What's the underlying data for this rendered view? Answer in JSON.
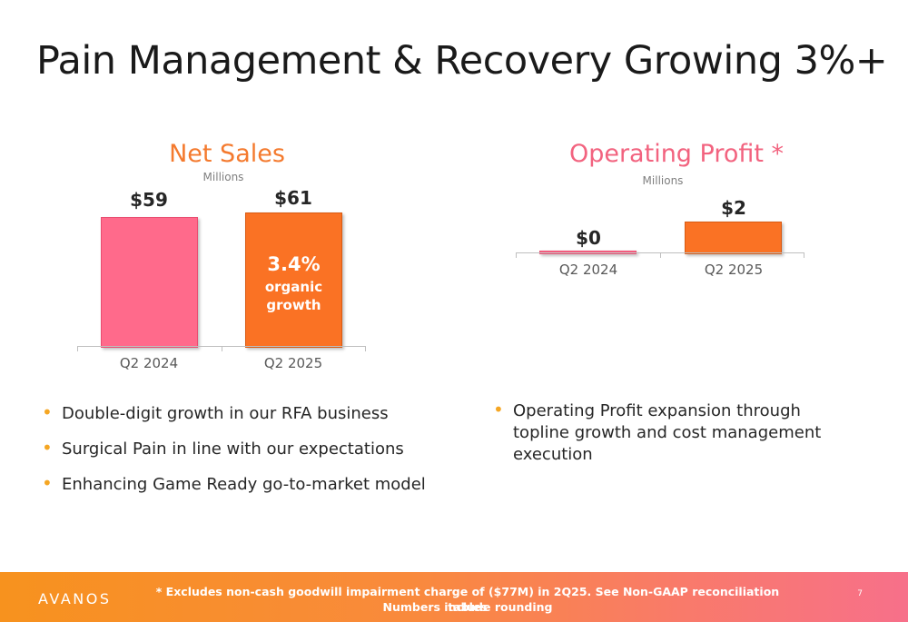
{
  "slide": {
    "title": "Pain Management & Recovery Growing 3%+",
    "page_number": "7"
  },
  "chart_data": [
    {
      "type": "bar",
      "title": "Net Sales",
      "subtitle": "Millions",
      "categories": [
        "Q2 2024",
        "Q2 2025"
      ],
      "values": [
        59,
        61
      ],
      "value_labels": [
        "$59",
        "$61"
      ],
      "colors": [
        "#ff6a8b",
        "#fa7224"
      ],
      "title_color": "#f47a2e",
      "annotation": {
        "pct": "3.4%",
        "line1": "organic",
        "line2": "growth"
      }
    },
    {
      "type": "bar",
      "title": "Operating Profit *",
      "subtitle": "Millions",
      "categories": [
        "Q2 2024",
        "Q2 2025"
      ],
      "values": [
        0,
        2
      ],
      "value_labels": [
        "$0",
        "$2"
      ],
      "colors": [
        "#ff6a8b",
        "#fa7224"
      ],
      "title_color": "#f2637f"
    }
  ],
  "bullets_left": [
    "Double-digit growth in our RFA business",
    "Surgical Pain in line with our expectations",
    "Enhancing Game Ready go-to-market model"
  ],
  "bullets_right": [
    "Operating Profit expansion through topline growth and cost management execution"
  ],
  "footer": {
    "logo": "AVANOS",
    "note_line1": "* Excludes non-cash goodwill impairment charge of ($77M) in 2Q25. See Non-GAAP reconciliation tables",
    "note_line2": "Numbers include rounding"
  }
}
